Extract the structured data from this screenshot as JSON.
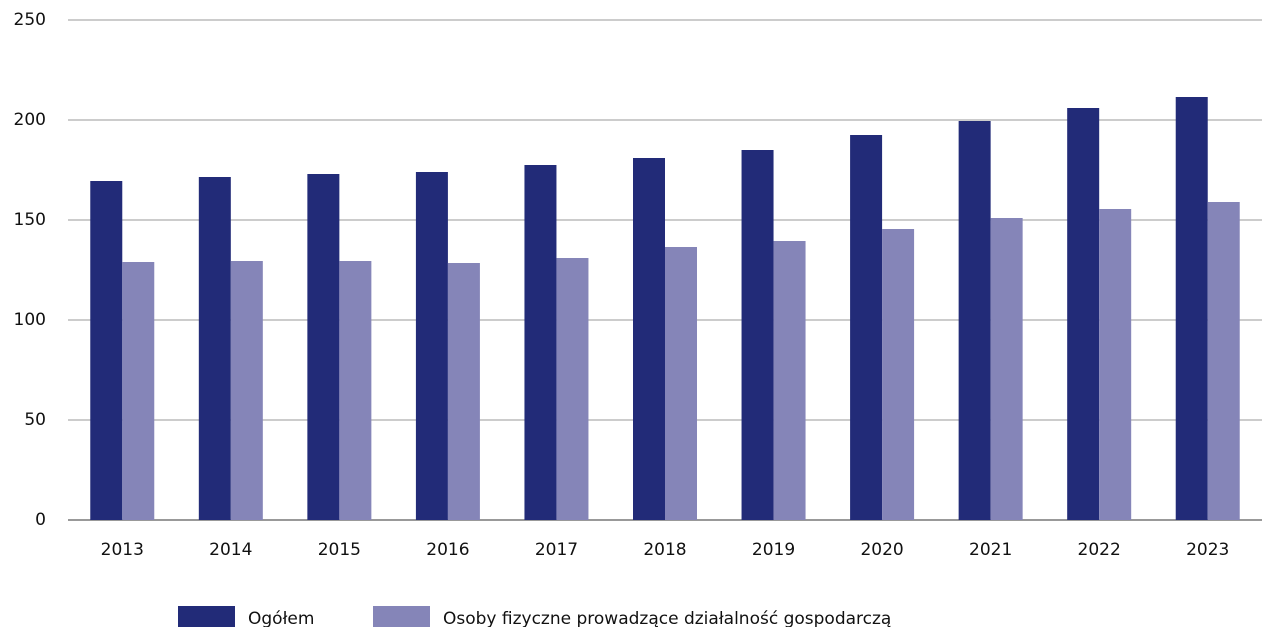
{
  "chart_data": {
    "type": "bar",
    "categories": [
      "2013",
      "2014",
      "2015",
      "2016",
      "2017",
      "2018",
      "2019",
      "2020",
      "2021",
      "2022",
      "2023"
    ],
    "series": [
      {
        "name": "Ogółem",
        "color": "#222b78",
        "values": [
          169.5,
          171.5,
          173,
          174,
          177.5,
          181,
          185,
          192.5,
          199.5,
          206,
          211.5
        ]
      },
      {
        "name": "Osoby fizyczne prowadzące działalność gospodarczą",
        "color": "#8585b8",
        "values": [
          129,
          129.5,
          129.5,
          128.5,
          131,
          136.5,
          139.5,
          145.5,
          151,
          155.5,
          159
        ]
      }
    ],
    "ylim": [
      0,
      250
    ],
    "yticks": [
      0,
      50,
      100,
      150,
      200,
      250
    ],
    "grid": true,
    "legend": "bottom"
  }
}
